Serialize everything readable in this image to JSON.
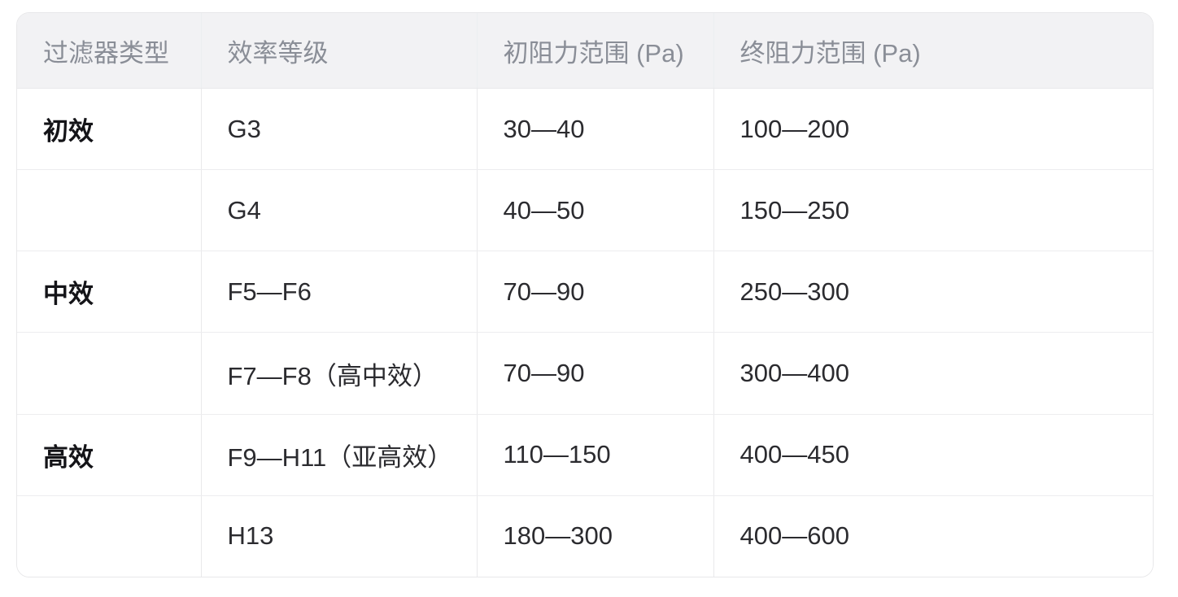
{
  "table": {
    "columns": [
      "过滤器类型",
      "效率等级",
      "初阻力范围 (Pa)",
      "终阻力范围 (Pa)"
    ],
    "rows": [
      {
        "cells": [
          "初效",
          "G3",
          "30—40",
          "100—200"
        ]
      },
      {
        "cells": [
          "",
          "G4",
          "40—50",
          "150—250"
        ]
      },
      {
        "cells": [
          "中效",
          "F5—F6",
          "70—90",
          "250—300"
        ]
      },
      {
        "cells": [
          "",
          "F7—F8（高中效）",
          "70—90",
          "300—400"
        ]
      },
      {
        "cells": [
          "高效",
          "F9—H11（亚高效）",
          "110—150",
          "400—450"
        ]
      },
      {
        "cells": [
          "",
          "H13",
          "180—300",
          "400—600"
        ]
      }
    ]
  },
  "colors": {
    "header_bg": "#f2f2f4",
    "header_text": "#8a8e97",
    "body_text": "#2b2b2f",
    "bold_text": "#141418",
    "grid_border": "#e9e9eb",
    "outer_border": "#e8e8ea",
    "page_bg": "#ffffff"
  }
}
